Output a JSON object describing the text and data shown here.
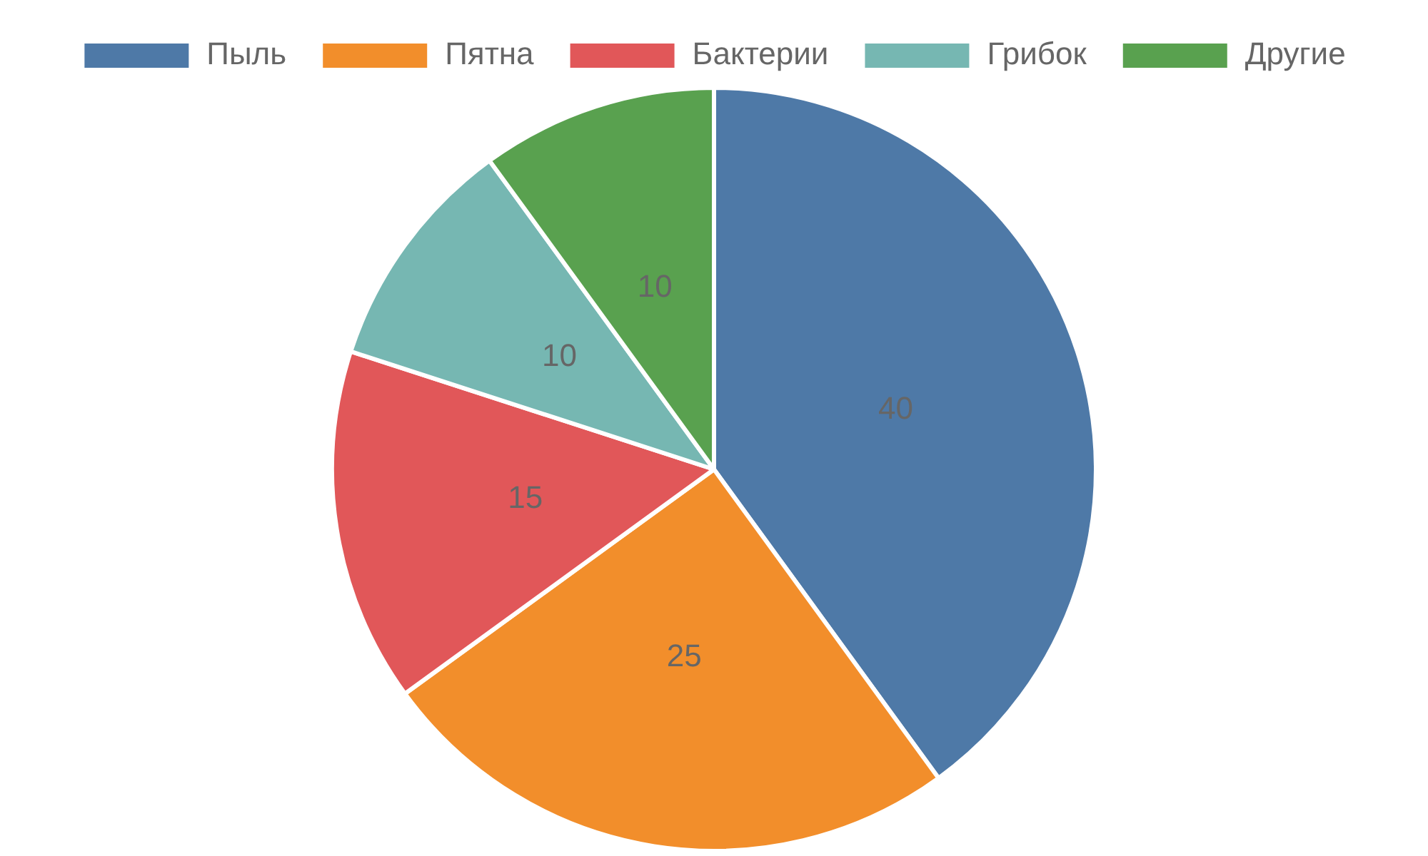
{
  "chart_data": {
    "type": "pie",
    "categories": [
      "Пыль",
      "Пятна",
      "Бактерии",
      "Грибок",
      "Другие"
    ],
    "values": [
      40,
      25,
      15,
      10,
      10
    ],
    "colors": [
      "#4e79a7",
      "#f28e2b",
      "#e15759",
      "#76b7b2",
      "#59a14f"
    ],
    "legend": "top",
    "data_labels": true
  }
}
